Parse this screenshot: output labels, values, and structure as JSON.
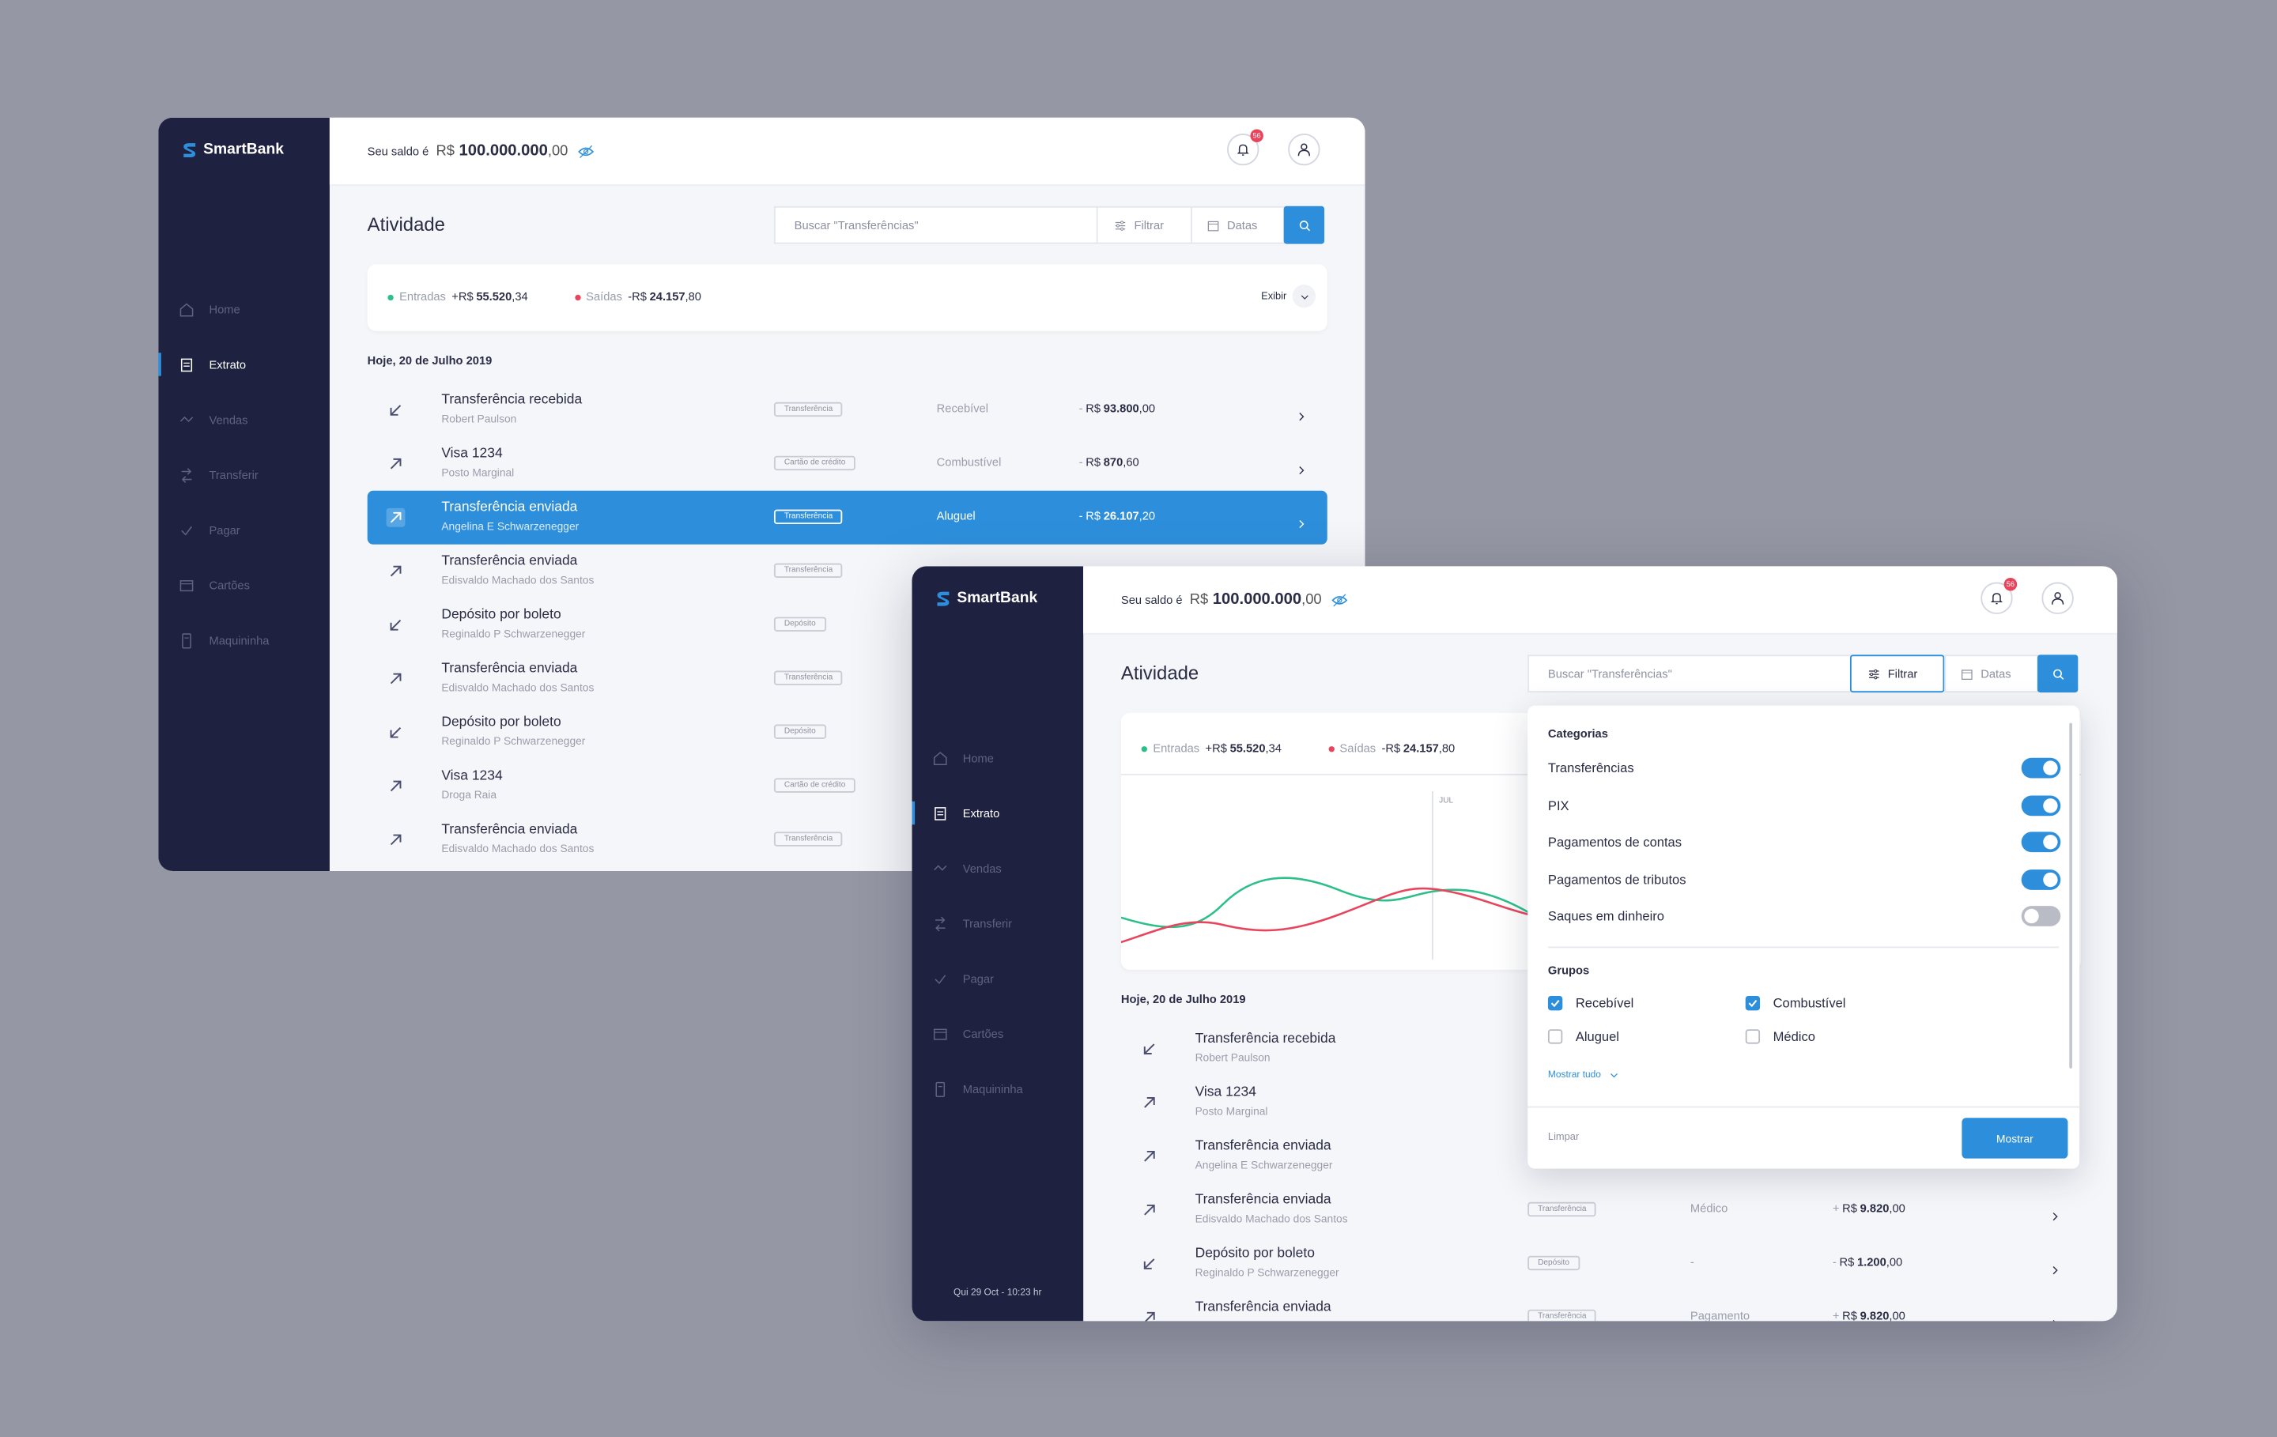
{
  "background_window": {
    "brand": "SmartBank",
    "balance_label": "Seu saldo é",
    "balance_currency": "R$",
    "balance_amount": "100.000.000",
    "balance_cents": ",00",
    "notifications": "56",
    "nav": [
      {
        "label": "Home"
      },
      {
        "label": "Extrato",
        "active": true
      },
      {
        "label": "Vendas"
      },
      {
        "label": "Transferir"
      },
      {
        "label": "Pagar"
      },
      {
        "label": "Cartões"
      },
      {
        "label": "Maquininha"
      }
    ],
    "title": "Atividade",
    "search_placeholder": "Buscar \"Transferências\"",
    "filter": "Filtrar",
    "dates": "Datas",
    "summary": {
      "in_label": "Entradas",
      "in_sign": "+R$",
      "in_amount": "55.520",
      "in_cents": ",34",
      "out_label": "Saídas",
      "out_sign": "-R$",
      "out_amount": "24.157",
      "out_cents": ",80",
      "show": "Exibir"
    },
    "date_heading": "Hoje, 20 de Julho 2019",
    "rows": [
      {
        "direction": "in",
        "title": "Transferência recebida",
        "subtitle": "Robert Paulson",
        "tag": "Transferência",
        "category": "Recebível",
        "sign": "-",
        "currency": "R$",
        "amount": "93.800",
        "cents": ",00"
      },
      {
        "direction": "out",
        "title": "Visa 1234",
        "subtitle": "Posto Marginal",
        "tag": "Cartão de crédito",
        "category": "Combustível",
        "sign": "-",
        "currency": "R$",
        "amount": "870",
        "cents": ",60"
      },
      {
        "direction": "out",
        "selected": true,
        "title": "Transferência enviada",
        "subtitle": "Angelina E Schwarzenegger",
        "tag": "Transferência",
        "category": "Aluguel",
        "sign": "-",
        "currency": "R$",
        "amount": "26.107",
        "cents": ",20"
      },
      {
        "direction": "out",
        "title": "Transferência enviada",
        "subtitle": "Edisvaldo Machado dos Santos",
        "tag": "Transferência"
      },
      {
        "direction": "in",
        "title": "Depósito por boleto",
        "subtitle": "Reginaldo P Schwarzenegger",
        "tag": "Depósito"
      },
      {
        "direction": "out",
        "title": "Transferência enviada",
        "subtitle": "Edisvaldo Machado dos Santos",
        "tag": "Transferência"
      },
      {
        "direction": "in",
        "title": "Depósito por boleto",
        "subtitle": "Reginaldo P Schwarzenegger",
        "tag": "Depósito"
      },
      {
        "direction": "out",
        "title": "Visa 1234",
        "subtitle": "Droga Raia",
        "tag": "Cartão de crédito"
      },
      {
        "direction": "out",
        "title": "Transferência enviada",
        "subtitle": "Edisvaldo Machado dos Santos",
        "tag": "Transferência"
      }
    ]
  },
  "foreground_window": {
    "brand": "SmartBank",
    "balance_label": "Seu saldo é",
    "balance_currency": "R$",
    "balance_amount": "100.000.000",
    "balance_cents": ",00",
    "notifications": "56",
    "nav": [
      {
        "label": "Home"
      },
      {
        "label": "Extrato",
        "active": true
      },
      {
        "label": "Vendas"
      },
      {
        "label": "Transferir"
      },
      {
        "label": "Pagar"
      },
      {
        "label": "Cartões"
      },
      {
        "label": "Maquininha"
      }
    ],
    "time": "Qui 29 Oct - 10:23 hr",
    "title": "Atividade",
    "search_placeholder": "Buscar \"Transferências\"",
    "filter": "Filtrar",
    "filter_active": true,
    "dates": "Datas",
    "summary": {
      "in_label": "Entradas",
      "in_sign": "+R$",
      "in_amount": "55.520",
      "in_cents": ",34",
      "out_label": "Saídas",
      "out_sign": "-R$",
      "out_amount": "24.157",
      "out_cents": ",80"
    },
    "chart": {
      "x_label": "JUL"
    },
    "date_heading": "Hoje, 20 de Julho 2019",
    "rows": [
      {
        "direction": "in",
        "title": "Transferência recebida",
        "subtitle": "Robert Paulson"
      },
      {
        "direction": "out",
        "title": "Visa 1234",
        "subtitle": "Posto Marginal"
      },
      {
        "direction": "out",
        "title": "Transferência enviada",
        "subtitle": "Angelina E Schwarzenegger"
      },
      {
        "direction": "out",
        "title": "Transferência enviada",
        "subtitle": "Edisvaldo Machado dos Santos",
        "tag": "Transferência",
        "category": "Médico",
        "sign": "+",
        "currency": "R$",
        "amount": "9.820",
        "cents": ",00"
      },
      {
        "direction": "in",
        "title": "Depósito por boleto",
        "subtitle": "Reginaldo P Schwarzenegger",
        "tag": "Depósito",
        "category": "-",
        "sign": "-",
        "currency": "R$",
        "amount": "1.200",
        "cents": ",00"
      },
      {
        "direction": "out",
        "title": "Transferência enviada",
        "tag": "Transferência",
        "category": "Pagamento",
        "sign": "+",
        "currency": "R$",
        "amount": "9.820",
        "cents": ",00"
      }
    ],
    "filter_panel": {
      "categories_title": "Categorias",
      "categories": [
        {
          "label": "Transferências",
          "on": true
        },
        {
          "label": "PIX",
          "on": true
        },
        {
          "label": "Pagamentos de contas",
          "on": true
        },
        {
          "label": "Pagamentos de tributos",
          "on": true
        },
        {
          "label": "Saques em dinheiro",
          "on": false
        }
      ],
      "groups_title": "Grupos",
      "groups": [
        {
          "label": "Recebível",
          "checked": true
        },
        {
          "label": "Combustível",
          "checked": true
        },
        {
          "label": "Aluguel",
          "checked": false
        },
        {
          "label": "Médico",
          "checked": false
        }
      ],
      "show_all": "Mostrar tudo",
      "clear": "Limpar",
      "submit": "Mostrar"
    }
  }
}
